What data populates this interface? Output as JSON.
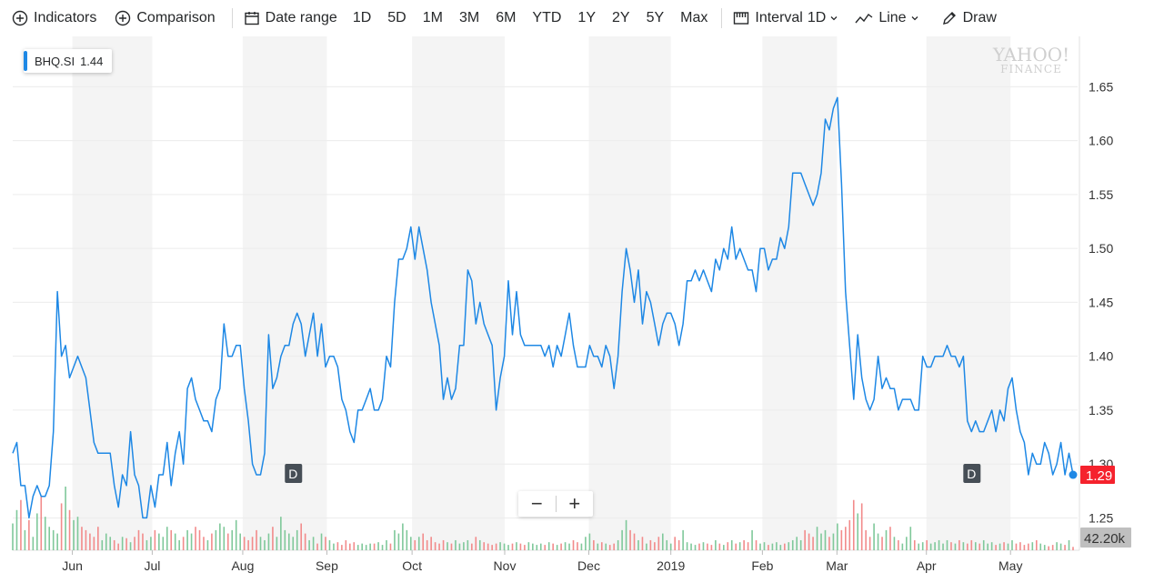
{
  "toolbar": {
    "indicators": "Indicators",
    "comparison": "Comparison",
    "date_range": "Date range",
    "ranges": [
      "1D",
      "5D",
      "1M",
      "3M",
      "6M",
      "YTD",
      "1Y",
      "2Y",
      "5Y",
      "Max"
    ],
    "interval_label": "Interval",
    "interval_value": "1D",
    "line_label": "Line",
    "draw_label": "Draw"
  },
  "watermark": {
    "line1": "YAHOO!",
    "line2": "FINANCE"
  },
  "ticker": {
    "symbol": "BHQ.SI",
    "value": "1.44"
  },
  "zoom": {
    "minus": "−",
    "plus": "+"
  },
  "price_badge": "1.29",
  "volume_badge": "42.20k",
  "dividend_marker": "D",
  "chart_data": {
    "type": "line",
    "series": [
      {
        "values": [
          1.31,
          1.32,
          1.28,
          1.28,
          1.25,
          1.27,
          1.28,
          1.27,
          1.27,
          1.28,
          1.33,
          1.46,
          1.4,
          1.41,
          1.38,
          1.39,
          1.4,
          1.39,
          1.38,
          1.35,
          1.32,
          1.31,
          1.31,
          1.31,
          1.31,
          1.28,
          1.26,
          1.29,
          1.28,
          1.33,
          1.29,
          1.28,
          1.25,
          1.25,
          1.28,
          1.26,
          1.29,
          1.29,
          1.32,
          1.28,
          1.31,
          1.33,
          1.3,
          1.37,
          1.38,
          1.36,
          1.35,
          1.34,
          1.34,
          1.33,
          1.36,
          1.37,
          1.43,
          1.4,
          1.4,
          1.41,
          1.41,
          1.37,
          1.34,
          1.3,
          1.29,
          1.29,
          1.31,
          1.42,
          1.37,
          1.38,
          1.4,
          1.41,
          1.41,
          1.43,
          1.44,
          1.43,
          1.4,
          1.42,
          1.44,
          1.4,
          1.43,
          1.39,
          1.4,
          1.4,
          1.39,
          1.36,
          1.35,
          1.33,
          1.32,
          1.35,
          1.35,
          1.36,
          1.37,
          1.35,
          1.35,
          1.36,
          1.4,
          1.39,
          1.45,
          1.49,
          1.49,
          1.5,
          1.52,
          1.49,
          1.52,
          1.5,
          1.48,
          1.45,
          1.43,
          1.41,
          1.36,
          1.38,
          1.36,
          1.37,
          1.41,
          1.41,
          1.48,
          1.47,
          1.43,
          1.45,
          1.43,
          1.42,
          1.41,
          1.35,
          1.38,
          1.4,
          1.47,
          1.42,
          1.46,
          1.42,
          1.41,
          1.41,
          1.41,
          1.41,
          1.41,
          1.4,
          1.41,
          1.39,
          1.41,
          1.4,
          1.42,
          1.44,
          1.41,
          1.39,
          1.39,
          1.39,
          1.41,
          1.4,
          1.4,
          1.39,
          1.41,
          1.4,
          1.37,
          1.4,
          1.46,
          1.5,
          1.48,
          1.45,
          1.48,
          1.43,
          1.46,
          1.45,
          1.43,
          1.41,
          1.43,
          1.44,
          1.44,
          1.43,
          1.41,
          1.43,
          1.47,
          1.47,
          1.48,
          1.47,
          1.48,
          1.47,
          1.46,
          1.49,
          1.48,
          1.5,
          1.49,
          1.52,
          1.49,
          1.5,
          1.49,
          1.48,
          1.48,
          1.46,
          1.5,
          1.5,
          1.48,
          1.49,
          1.49,
          1.51,
          1.5,
          1.52,
          1.57,
          1.57,
          1.57,
          1.56,
          1.55,
          1.54,
          1.55,
          1.57,
          1.62,
          1.61,
          1.63,
          1.64,
          1.56,
          1.46,
          1.41,
          1.36,
          1.42,
          1.38,
          1.36,
          1.35,
          1.36,
          1.4,
          1.37,
          1.38,
          1.37,
          1.37,
          1.35,
          1.36,
          1.36,
          1.36,
          1.35,
          1.35,
          1.4,
          1.39,
          1.39,
          1.4,
          1.4,
          1.4,
          1.41,
          1.4,
          1.4,
          1.39,
          1.4,
          1.34,
          1.33,
          1.34,
          1.33,
          1.33,
          1.34,
          1.35,
          1.33,
          1.35,
          1.34,
          1.37,
          1.38,
          1.35,
          1.33,
          1.32,
          1.29,
          1.31,
          1.3,
          1.3,
          1.32,
          1.31,
          1.29,
          1.3,
          1.32,
          1.29,
          1.31,
          1.29
        ]
      }
    ],
    "volume": [
      40,
      60,
      75,
      30,
      45,
      20,
      55,
      80,
      50,
      35,
      30,
      25,
      70,
      95,
      60,
      45,
      50,
      35,
      30,
      25,
      20,
      35,
      15,
      25,
      20,
      15,
      10,
      20,
      18,
      12,
      20,
      30,
      25,
      15,
      20,
      30,
      25,
      20,
      35,
      30,
      25,
      15,
      20,
      30,
      25,
      35,
      30,
      20,
      15,
      25,
      30,
      40,
      35,
      25,
      30,
      45,
      25,
      20,
      15,
      20,
      30,
      20,
      15,
      25,
      35,
      20,
      50,
      30,
      25,
      20,
      30,
      40,
      25,
      15,
      20,
      10,
      25,
      20,
      15,
      10,
      12,
      8,
      15,
      10,
      12,
      8,
      10,
      8,
      10,
      10,
      12,
      8,
      15,
      10,
      30,
      25,
      40,
      30,
      20,
      15,
      20,
      25,
      15,
      20,
      12,
      10,
      15,
      12,
      10,
      15,
      10,
      12,
      15,
      10,
      20,
      15,
      12,
      10,
      8,
      10,
      12,
      10,
      8,
      10,
      12,
      10,
      8,
      12,
      10,
      8,
      10,
      8,
      12,
      10,
      8,
      10,
      12,
      10,
      15,
      12,
      10,
      20,
      25,
      15,
      10,
      12,
      10,
      8,
      10,
      15,
      30,
      45,
      30,
      25,
      15,
      20,
      10,
      15,
      12,
      20,
      25,
      15,
      10,
      20,
      15,
      30,
      12,
      10,
      8,
      10,
      12,
      10,
      8,
      15,
      10,
      8,
      12,
      15,
      10,
      12,
      15,
      12,
      30,
      15,
      10,
      12,
      8,
      10,
      12,
      8,
      10,
      12,
      15,
      20,
      15,
      30,
      25,
      20,
      35,
      25,
      30,
      20,
      25,
      40,
      30,
      35,
      45,
      75,
      55,
      70,
      30,
      20,
      40,
      25,
      20,
      30,
      35,
      20,
      15,
      10,
      20,
      35,
      15,
      10,
      12,
      15,
      10,
      12,
      15,
      10,
      15,
      12,
      10,
      15,
      12,
      10,
      15,
      12,
      10,
      15,
      10,
      12,
      8,
      10,
      12,
      10,
      15,
      10,
      12,
      8,
      10,
      12,
      15,
      10,
      8,
      6,
      8,
      12,
      10,
      8,
      15,
      5,
      4,
      3,
      4,
      2,
      3,
      2
    ],
    "x_labels": [
      "Jun",
      "Jul",
      "Aug",
      "Sep",
      "Oct",
      "Nov",
      "Dec",
      "2019",
      "Feb",
      "Mar",
      "Apr",
      "May"
    ],
    "y_ticks": [
      "1.25",
      "1.30",
      "1.35",
      "1.40",
      "1.45",
      "1.50",
      "1.55",
      "1.60",
      "1.65"
    ],
    "ylim": [
      1.22,
      1.69
    ],
    "line_color": "#1e88e5",
    "badge_color": "#f5222d",
    "dividends_at_index": [
      69,
      236
    ]
  }
}
